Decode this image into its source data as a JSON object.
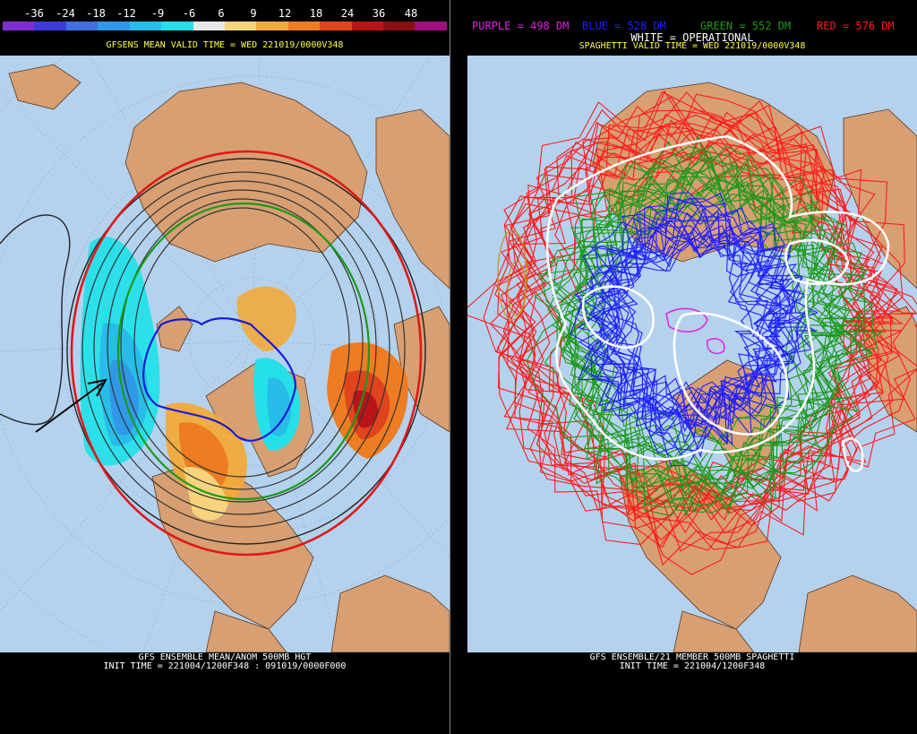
{
  "left": {
    "colorbar": {
      "labels": [
        "-36",
        "-24",
        "-18",
        "-12",
        "-9",
        "-6",
        "6",
        "9",
        "12",
        "18",
        "24",
        "36",
        "48"
      ],
      "colors": [
        "#7f2fd0",
        "#3c3cd8",
        "#3f6fe0",
        "#2f98e8",
        "#27bde8",
        "#25e0e8",
        "#e8e8e8",
        "#f6d37c",
        "#f2aa3a",
        "#ee7c22",
        "#e0441c",
        "#b8141a",
        "#881010",
        "#a01080"
      ]
    },
    "title": "GFSENS MEAN VALID TIME = WED 221019/0000V348",
    "bottom_line1": "GFS ENSEMBLE MEAN/ANOM 500MB HGT",
    "bottom_line2": "INIT TIME = 221004/1200F348 : 091019/0000F000"
  },
  "right": {
    "legend": [
      {
        "text": "PURPLE = 498 DM",
        "color": "#e020e0"
      },
      {
        "text": "BLUE = 528 DM",
        "color": "#2020ff"
      },
      {
        "text": "GREEN = 552 DM",
        "color": "#1a9a1a"
      },
      {
        "text": "RED = 576 DM",
        "color": "#ff1a1a"
      }
    ],
    "legend_white": "WHITE = OPERATIONAL",
    "title": "SPAGHETTI VALID TIME = WED 221019/0000V348",
    "bottom_line1": "GFS ENSEMBLE/21 MEMBER 500MB SPAGHETTI",
    "bottom_line2": "INIT TIME = 221004/1200F348"
  },
  "colors": {
    "ocean": "#b4d2ee",
    "land": "#d79f72",
    "border": "#5a3a24"
  }
}
